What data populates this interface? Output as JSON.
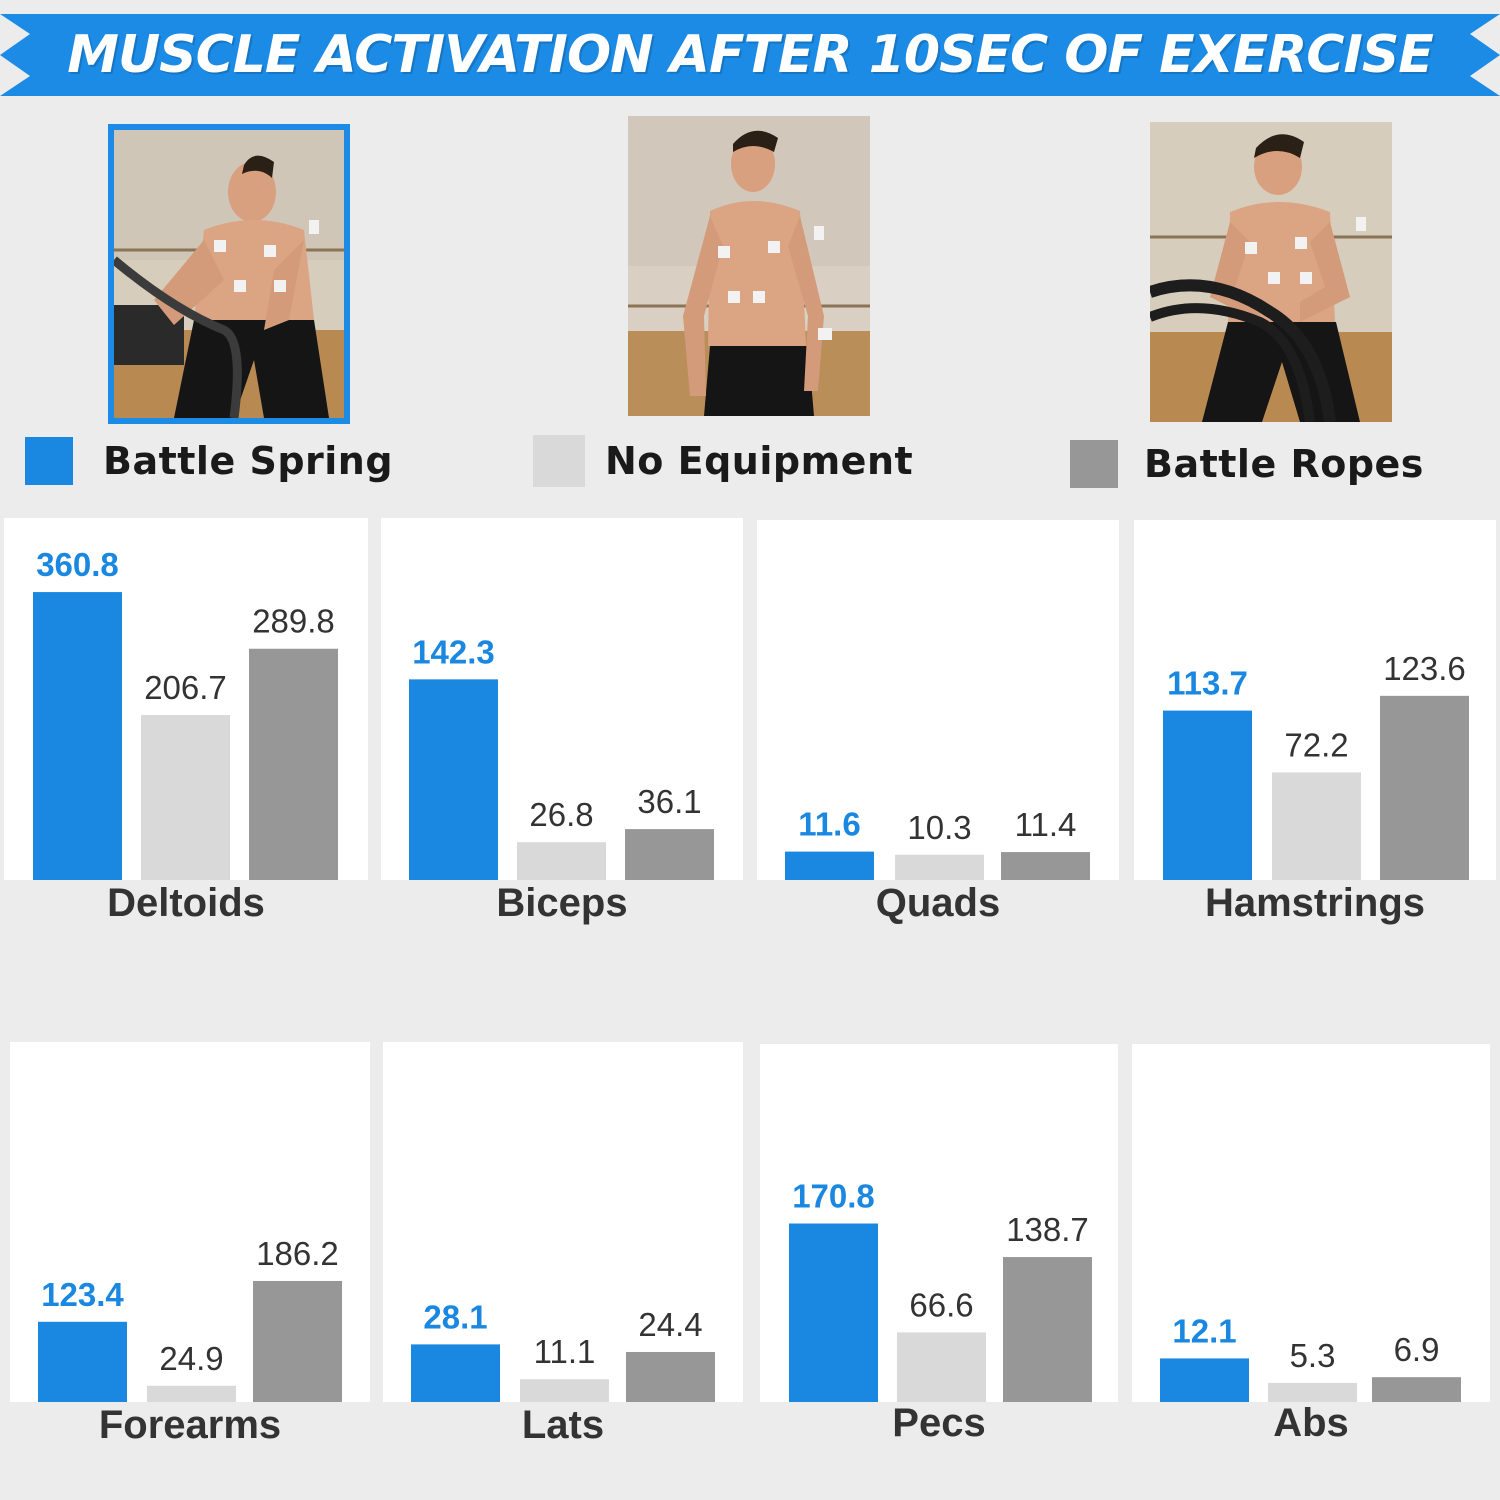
{
  "title": "MUSCLE ACTIVATION AFTER 10SEC OF EXERCISE",
  "colors": {
    "banner": "#1c8be6",
    "battle_spring": "#1a87e0",
    "no_equipment": "#d9d9d9",
    "battle_ropes": "#979797",
    "value_blue": "#1a87e0",
    "value_dark": "#333333"
  },
  "legend": [
    {
      "label": "Battle Spring",
      "color": "#1a87e0"
    },
    {
      "label": "No Equipment",
      "color": "#d9d9d9"
    },
    {
      "label": "Battle Ropes",
      "color": "#979797"
    }
  ],
  "photos": [
    {
      "name": "battle-spring-photo",
      "selected": true
    },
    {
      "name": "no-equipment-photo",
      "selected": false
    },
    {
      "name": "battle-ropes-photo",
      "selected": false
    }
  ],
  "chart_data": {
    "type": "bar",
    "series_names": [
      "Battle Spring",
      "No Equipment",
      "Battle Ropes"
    ],
    "panels": [
      {
        "label": "Deltoids",
        "values": [
          360.8,
          206.7,
          289.8
        ],
        "labels": [
          "360.8",
          "206.7",
          "289.8"
        ]
      },
      {
        "label": "Biceps",
        "values": [
          142.3,
          26.8,
          36.1
        ],
        "labels": [
          "142.3",
          "26.8",
          "36.1"
        ]
      },
      {
        "label": "Quads",
        "values": [
          11.6,
          10.3,
          11.4
        ],
        "labels": [
          "11.6",
          "10.3",
          "11.4"
        ]
      },
      {
        "label": "Hamstrings",
        "values": [
          113.7,
          72.2,
          123.6
        ],
        "labels": [
          "113.7",
          "72.2",
          "123.6"
        ]
      },
      {
        "label": "Forearms",
        "values": [
          123.4,
          24.9,
          186.2
        ],
        "labels": [
          "123.4",
          "24.9",
          "186.2"
        ]
      },
      {
        "label": "Lats",
        "values": [
          28.1,
          11.1,
          24.4
        ],
        "labels": [
          "28.1",
          "11.1",
          "24.4"
        ]
      },
      {
        "label": "Pecs",
        "values": [
          170.8,
          66.6,
          138.7
        ],
        "labels": [
          "170.8",
          "66.6",
          "138.7"
        ]
      },
      {
        "label": "Abs",
        "values": [
          12.1,
          5.3,
          6.9
        ],
        "labels": [
          "12.1",
          "5.3",
          "6.9"
        ]
      }
    ]
  }
}
